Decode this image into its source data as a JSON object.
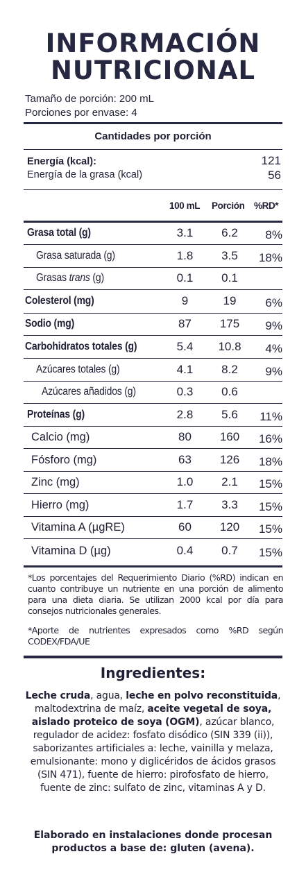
{
  "title": {
    "line1": "INFORMACIÓN",
    "line2": "NUTRICIONAL"
  },
  "serving": {
    "size": "Tamaño de porción: 200 mL",
    "per_container": "Porciones por envase: 4"
  },
  "header": "Cantidades por porción",
  "energy": [
    {
      "label": "Energía (kcal):",
      "value": "121"
    },
    {
      "label": "Energía de la grasa (kcal)",
      "value": "56"
    }
  ],
  "columns": {
    "c1": "100 mL",
    "c2": "Porción",
    "c3": "%RD*"
  },
  "rows": [
    {
      "label": "Grasa total (g)",
      "v100": "3.1",
      "vpor": "6.2",
      "rd": "8%"
    },
    {
      "label": "Grasa saturada (g)",
      "v100": "1.8",
      "vpor": "3.5",
      "rd": "18%"
    },
    {
      "label_pre": "Grasas ",
      "label_em": "trans",
      "label_post": " (g)",
      "v100": "0.1",
      "vpor": "0.1",
      "rd": ""
    },
    {
      "label": "Colesterol (mg)",
      "v100": "9",
      "vpor": "19",
      "rd": "6%"
    },
    {
      "label": "Sodio (mg)",
      "v100": "87",
      "vpor": "175",
      "rd": "9%"
    },
    {
      "label": "Carbohidratos totales (g)",
      "v100": "5.4",
      "vpor": "10.8",
      "rd": "4%"
    },
    {
      "label": "Azúcares totales (g)",
      "v100": "4.1",
      "vpor": "8.2",
      "rd": "9%"
    },
    {
      "label": "Azúcares añadidos (g)",
      "v100": "0.3",
      "vpor": "0.6",
      "rd": ""
    },
    {
      "label": "Proteínas (g)",
      "v100": "2.8",
      "vpor": "5.6",
      "rd": "11%"
    },
    {
      "label": "Calcio (mg)",
      "v100": "80",
      "vpor": "160",
      "rd": "16%"
    },
    {
      "label": "Fósforo (mg)",
      "v100": "63",
      "vpor": "126",
      "rd": "18%"
    },
    {
      "label": "Zinc (mg)",
      "v100": "1.0",
      "vpor": "2.1",
      "rd": "15%"
    },
    {
      "label": "Hierro (mg)",
      "v100": "1.7",
      "vpor": "3.3",
      "rd": "15%"
    },
    {
      "label": "Vitamina A (µgRE)",
      "v100": "60",
      "vpor": "120",
      "rd": "15%"
    },
    {
      "label": "Vitamina D (µg)",
      "v100": "0.4",
      "vpor": "0.7",
      "rd": "15%"
    }
  ],
  "footnotes": {
    "f1": "*Los porcentajes del Requerimiento Diario (%RD) indican en cuanto contribuye un nutriente en una porción de alimento para una dieta diaria. Se utilizan 2000 kcal por día para consejos nutricionales generales.",
    "f2": "*Aporte de nutrientes expresados como %RD según CODEX/FDA/UE"
  },
  "ingredients": {
    "title": "Ingredientes:",
    "p1": "Leche cruda",
    "p2": ", agua, ",
    "p3": "leche en polvo reconstituida",
    "p4": ", maltodextrina de maíz, ",
    "p5": "aceite vegetal de soya, aislado proteico de soya (OGM)",
    "p6": ", azúcar blanco, regulador de acidez: fosfato disódico (SIN 339 (ii)), saborizantes artificiales a: leche, vainilla y melaza, emulsionante: mono y diglicéridos de ácidos grasos (SIN 471), fuente de hierro: pirofosfato de hierro, fuente de zinc: sulfato de zinc, vitaminas A y D."
  },
  "allergen": "Elaborado en instalaciones donde procesan productos a base de: gluten (avena)."
}
